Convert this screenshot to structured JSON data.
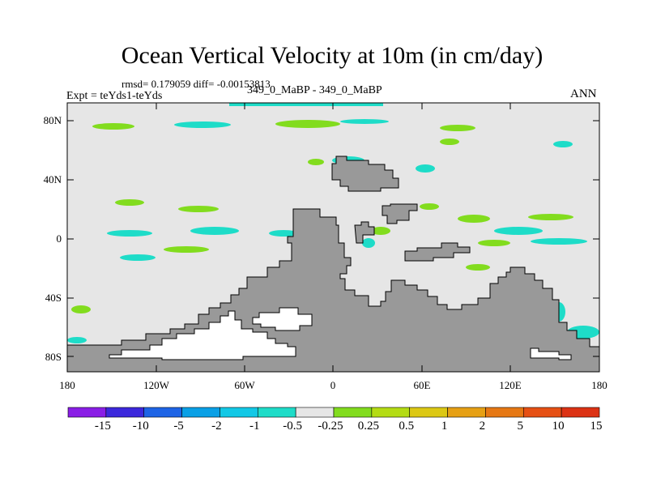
{
  "title": "Ocean Vertical Velocity at 10m (in cm/day)",
  "stats": "rmsd= 0.179059 diff= -0.00153813",
  "experiment": "Expt = teYds1-teYds",
  "case": "349_0_MaBP - 349_0_MaBP",
  "season": "ANN",
  "lat_ticks": [
    "80N",
    "40N",
    "0",
    "40S",
    "80S"
  ],
  "lon_ticks": [
    "180",
    "120W",
    "60W",
    "0",
    "60E",
    "120E",
    "180"
  ],
  "colorbar": {
    "labels": [
      "-15",
      "-10",
      "-5",
      "-2",
      "-1",
      "-0.5",
      "-0.25",
      "0.25",
      "0.5",
      "1",
      "2",
      "5",
      "10",
      "15"
    ],
    "colors": [
      "#8a1ee6",
      "#3c28dc",
      "#1e64e6",
      "#0aa0e6",
      "#12c8e6",
      "#1edcc8",
      "#e6e6e6",
      "#82dc1e",
      "#b4dc14",
      "#dcc814",
      "#e6a014",
      "#e67814",
      "#e65014",
      "#dc3214"
    ]
  },
  "colors": {
    "land": "#999999",
    "ocean_background": "#e6e6e6"
  }
}
